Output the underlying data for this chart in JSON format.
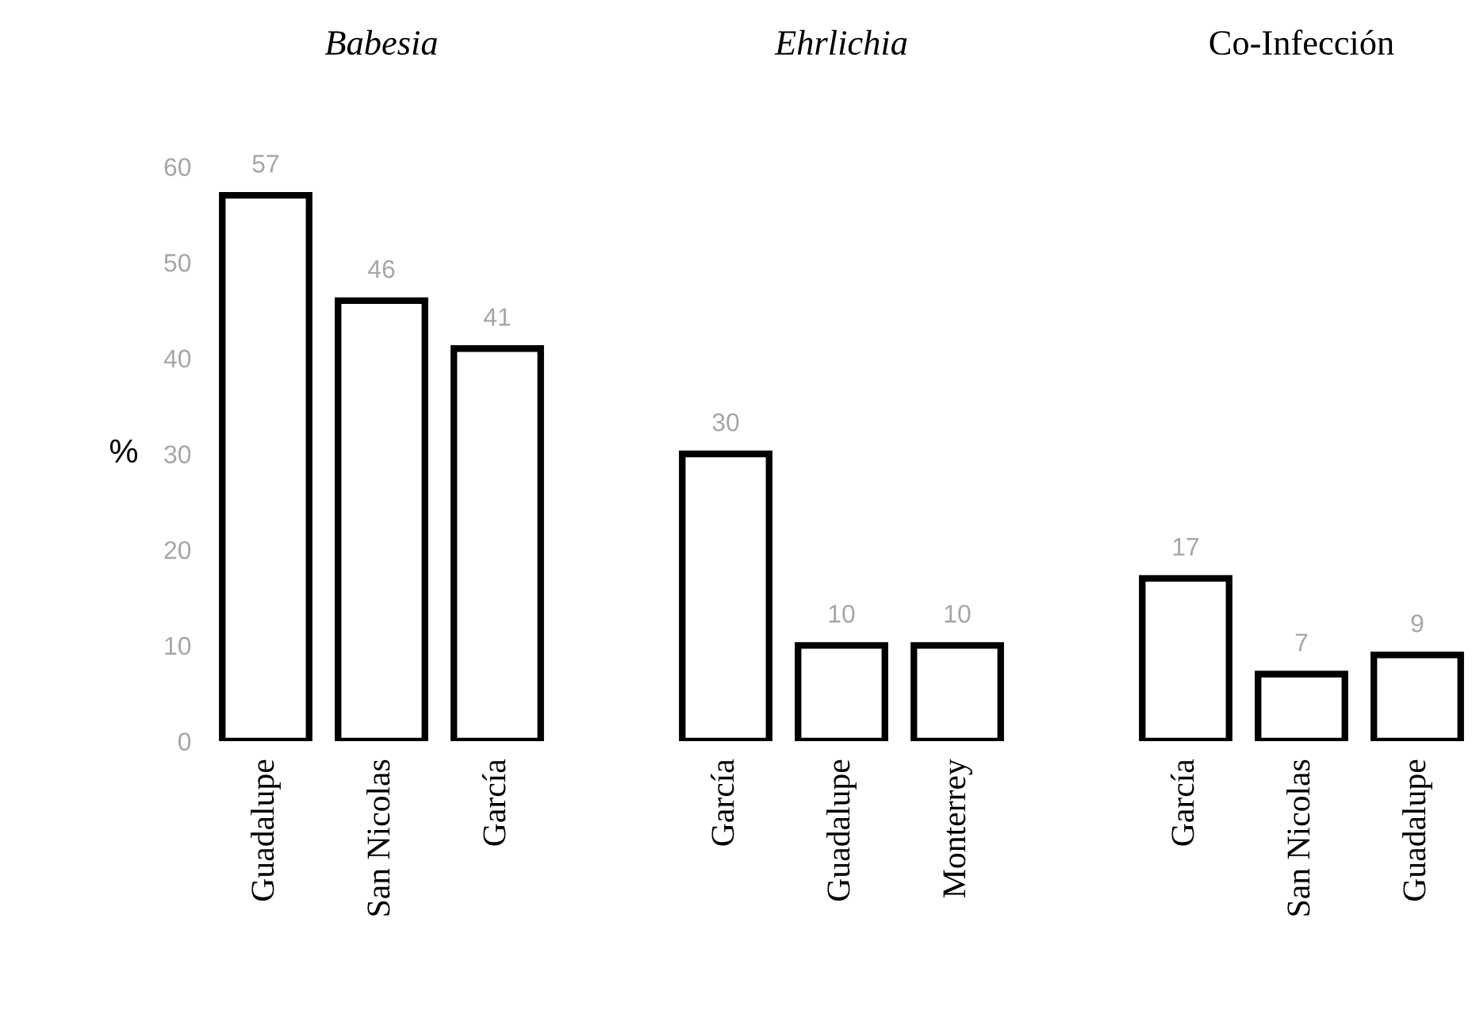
{
  "chart_data": [
    {
      "type": "bar",
      "title": "Babesia",
      "ylabel": "%",
      "categories": [
        "Guadalupe",
        "San Nicolas",
        "García"
      ],
      "values": [
        57,
        46,
        41
      ],
      "color": "#ffffff",
      "data_labels": true,
      "ylim": [
        0,
        60
      ],
      "yticks": [
        0,
        10,
        20,
        30,
        40,
        50,
        60
      ],
      "grid": false
    },
    {
      "type": "bar",
      "title": "Ehrlichia",
      "categories": [
        "García",
        "Guadalupe",
        "Monterrey"
      ],
      "values": [
        30,
        10,
        10
      ],
      "color": "#ffffff",
      "data_labels": true,
      "ylim": [
        0,
        60
      ],
      "yticks": [
        0,
        10,
        20,
        30,
        40,
        50,
        60
      ],
      "tick_labels": "x",
      "grid": false
    },
    {
      "type": "bar",
      "title": "Co-Infección",
      "categories": [
        "García",
        "San Nicolas",
        "Guadalupe"
      ],
      "values": [
        17,
        7,
        9
      ],
      "color": "#ffffff",
      "data_labels": true,
      "ylim": [
        0,
        60
      ],
      "yticks": [
        0,
        10,
        20,
        30,
        40,
        50,
        60
      ],
      "tick_labels": "x",
      "grid": false
    }
  ]
}
